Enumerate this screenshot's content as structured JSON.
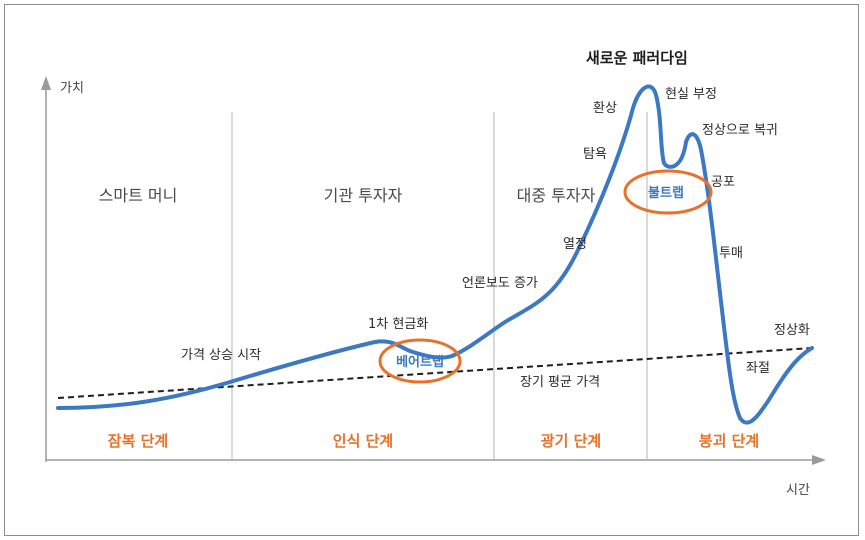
{
  "axes": {
    "y_label": "가치",
    "x_label": "시간"
  },
  "title": "새로운 패러다임",
  "groups": [
    "스마트 머니",
    "기관 투자자",
    "대중 투자자"
  ],
  "phases": [
    "잠복 단계",
    "인식 단계",
    "광기 단계",
    "붕괴 단계"
  ],
  "annotations": {
    "price_rise_start": "가격 상승 시작",
    "first_cashout": "1차 현금화",
    "bear_trap": "베어트랩",
    "media_coverage": "언론보도 증가",
    "enthusiasm": "열정",
    "greed": "탐욕",
    "delusion": "환상",
    "denial": "현실 부정",
    "bull_trap": "불트랩",
    "return_to_normal": "정상으로 복귀",
    "fear": "공포",
    "capitulation": "투매",
    "despair": "좌절",
    "normalization": "정상화",
    "long_term_mean": "장기 평균 가격"
  },
  "colors": {
    "curve": "#3c78c3",
    "trap_circle": "#e8722a",
    "phase_text": "#e8722a",
    "divider": "#b5b5b5"
  }
}
